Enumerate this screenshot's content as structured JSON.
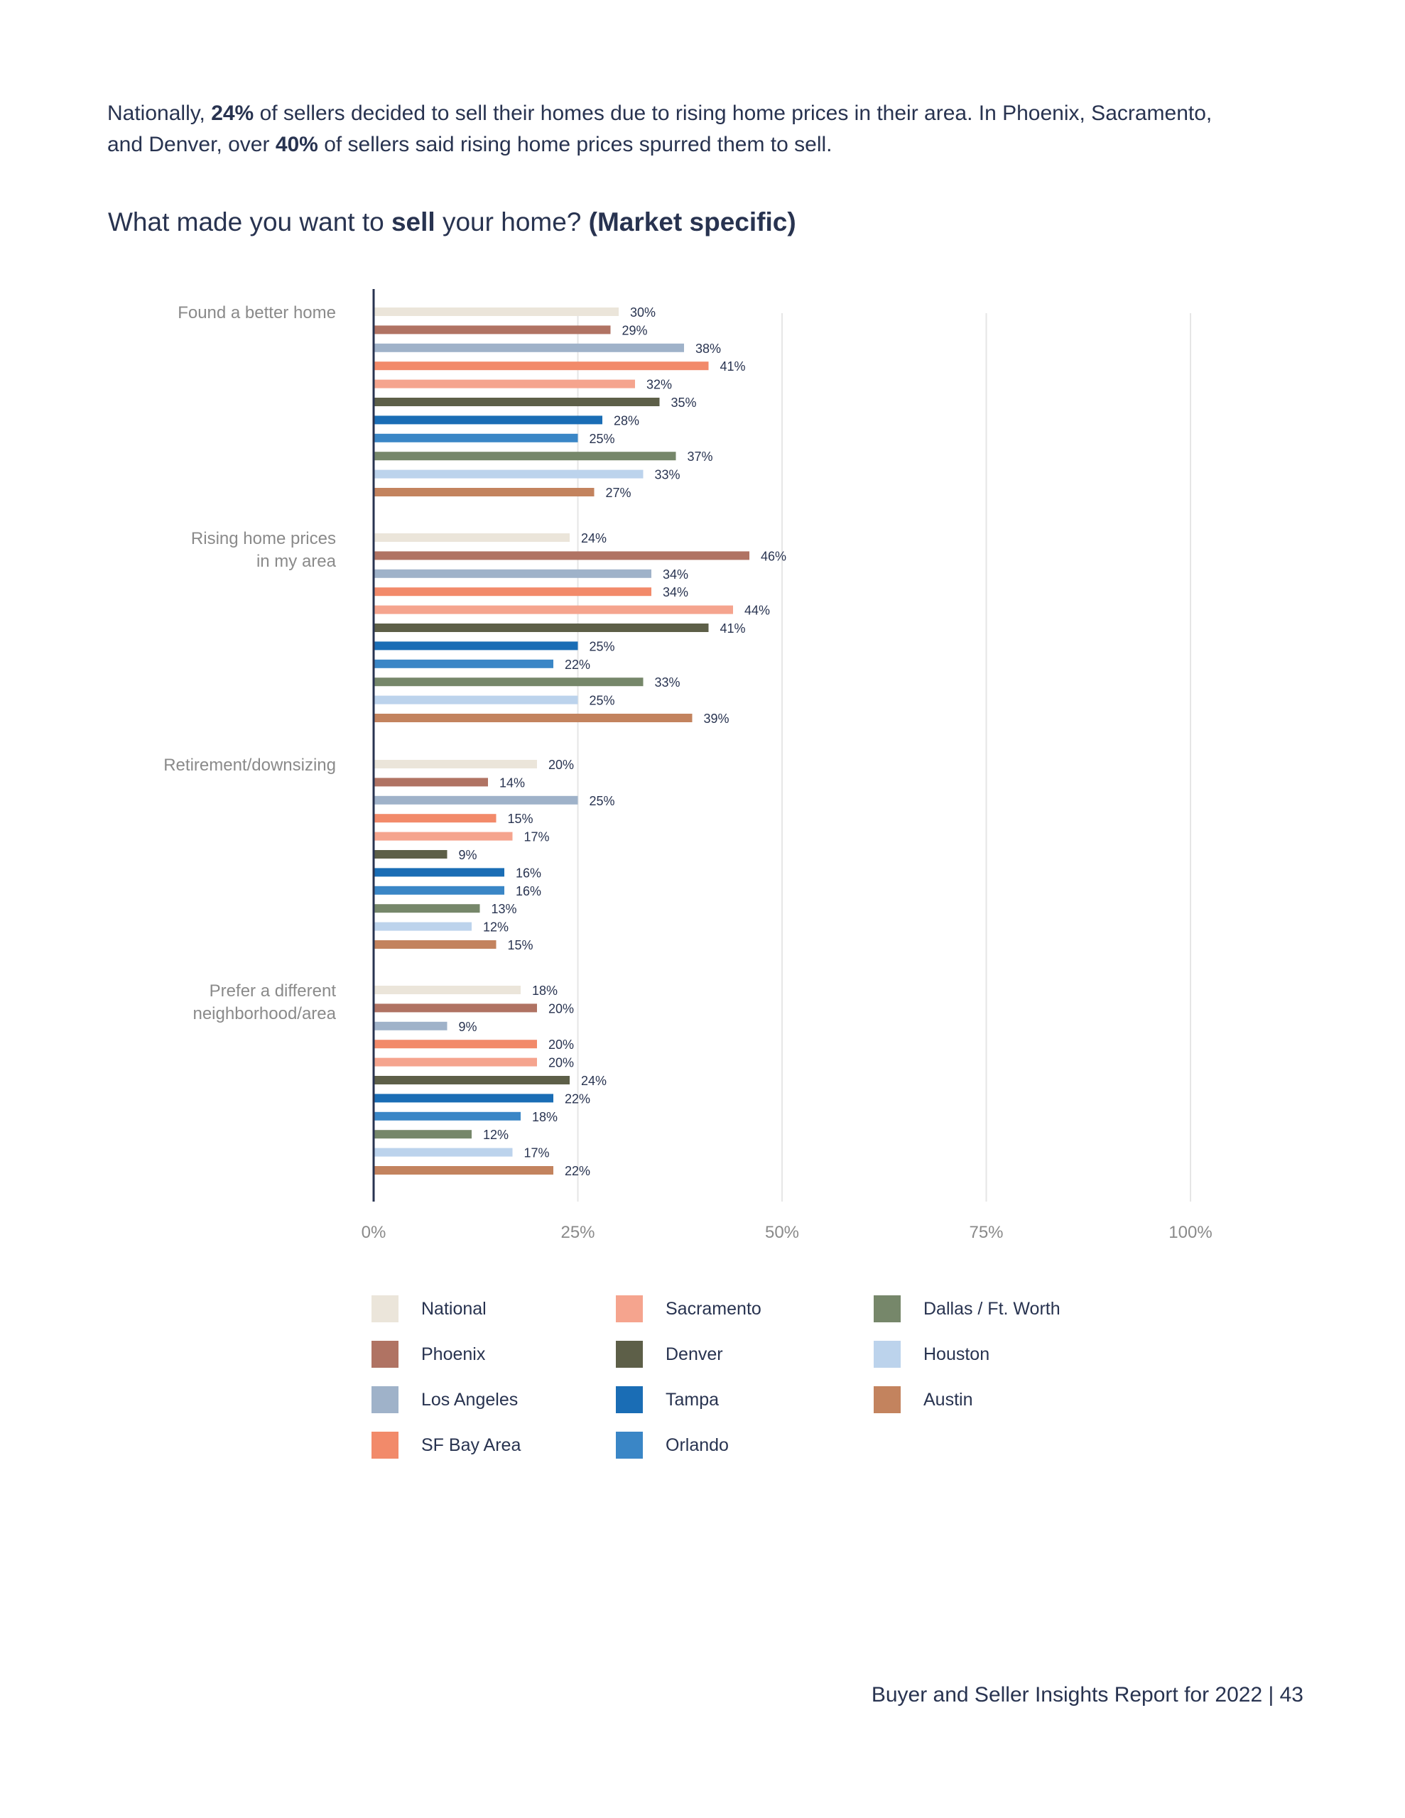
{
  "intro": {
    "p1": "Nationally, ",
    "b1": "24%",
    "p2": " of sellers decided to sell their homes due to rising home prices in their area. In Phoenix, Sacramento, and Denver, over ",
    "b2": "40%",
    "p3": " of sellers said rising home prices spurred them to sell."
  },
  "title": {
    "t1": "What made you want to ",
    "b1": "sell",
    "t2": " your home? ",
    "b2": "(Market specific)"
  },
  "footer": "Buyer and Seller Insights Report for 2022  |  43",
  "chart_data": {
    "type": "bar",
    "orientation": "horizontal",
    "title": "What made you want to sell your home? (Market specific)",
    "categories": [
      [
        "Found a better home"
      ],
      [
        "Rising home prices",
        "in my area"
      ],
      [
        "Retirement/downsizing"
      ],
      [
        "Prefer a different",
        "neighborhood/area"
      ]
    ],
    "xlim": [
      0,
      100
    ],
    "xticks": [
      0,
      25,
      50,
      75,
      100
    ],
    "xtick_labels": [
      "0%",
      "25%",
      "50%",
      "75%",
      "100%"
    ],
    "grid": true,
    "legend_position": "bottom",
    "series": [
      {
        "name": "National",
        "color": "#ebe5da",
        "values": [
          30,
          24,
          20,
          18
        ]
      },
      {
        "name": "Phoenix",
        "color": "#b07363",
        "values": [
          29,
          46,
          14,
          20
        ]
      },
      {
        "name": "Los Angeles",
        "color": "#9fb2c9",
        "values": [
          38,
          34,
          25,
          9
        ]
      },
      {
        "name": "SF Bay Area",
        "color": "#f28a6a",
        "values": [
          41,
          34,
          15,
          20
        ]
      },
      {
        "name": "Sacramento",
        "color": "#f5a48e",
        "values": [
          32,
          44,
          17,
          20
        ]
      },
      {
        "name": "Denver",
        "color": "#5d5f48",
        "values": [
          35,
          41,
          9,
          24
        ]
      },
      {
        "name": "Tampa",
        "color": "#1a6db5",
        "values": [
          28,
          25,
          16,
          22
        ]
      },
      {
        "name": "Orlando",
        "color": "#3a86c6",
        "values": [
          25,
          22,
          16,
          18
        ]
      },
      {
        "name": "Dallas / Ft. Worth",
        "color": "#76876a",
        "values": [
          37,
          33,
          13,
          12
        ]
      },
      {
        "name": "Houston",
        "color": "#bcd3ec",
        "values": [
          33,
          25,
          12,
          17
        ]
      },
      {
        "name": "Austin",
        "color": "#c3835e",
        "values": [
          27,
          39,
          15,
          22
        ]
      }
    ]
  }
}
